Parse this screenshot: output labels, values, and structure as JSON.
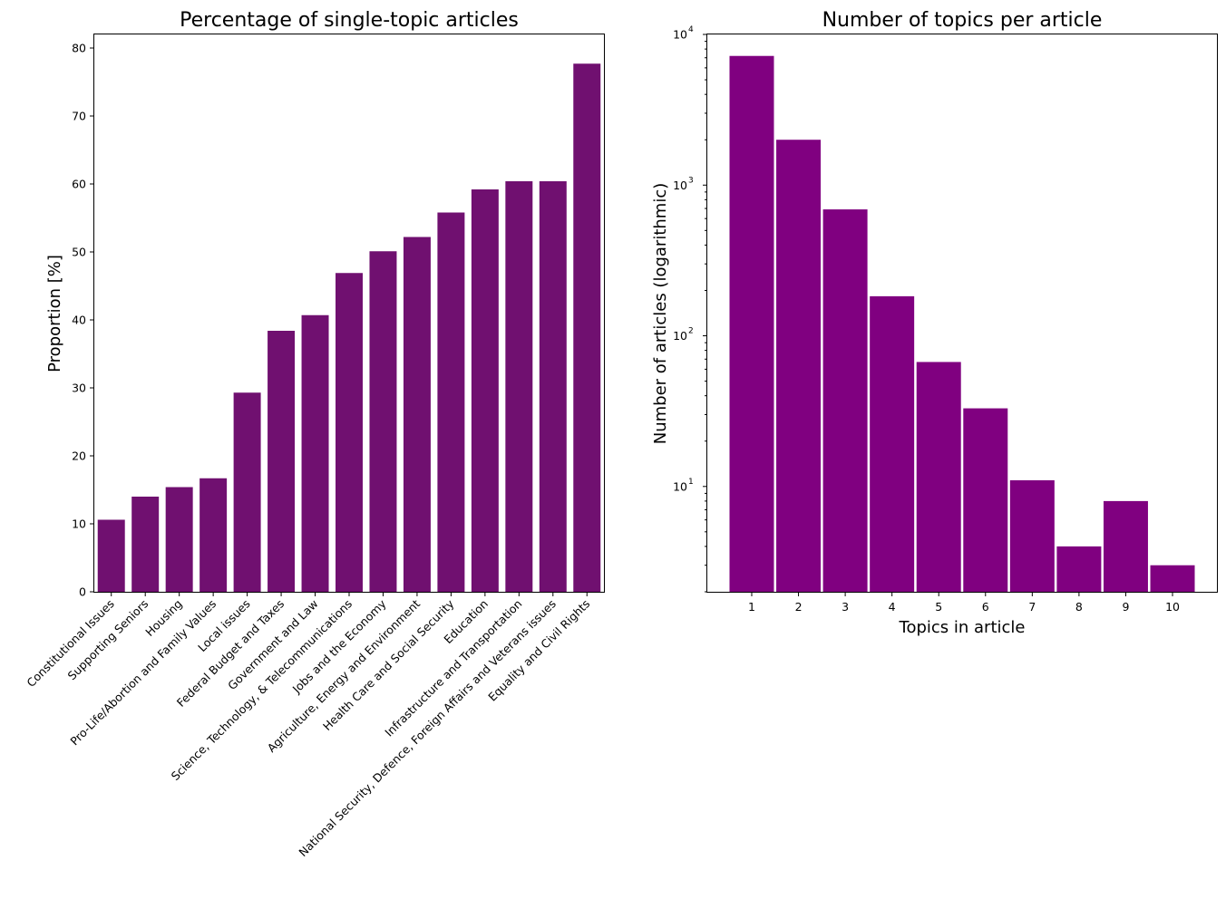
{
  "chart_data": [
    {
      "type": "bar",
      "title": "Percentage of single-topic articles",
      "xlabel": "",
      "ylabel": "Proportion [%]",
      "ylim": [
        0,
        82
      ],
      "yticks": [
        0,
        10,
        20,
        30,
        40,
        50,
        60,
        70,
        80
      ],
      "color": "#701070",
      "categories": [
        "Constitutional Issues",
        "Supporting Seniors",
        "Housing",
        "Pro-Life/Abortion and Family Values",
        "Local issues",
        "Federal Budget and Taxes",
        "Government and Law",
        "Science, Technology, & Telecommunications",
        "Jobs and the Economy",
        "Agriculture, Energy and Environment",
        "Health Care and Social Security",
        "Education",
        "Infrastructure and Transportation",
        "National Security, Defence, Foreign Affairs and Veterans issues",
        "Equality and Civil Rights"
      ],
      "values": [
        10.6,
        14.0,
        15.4,
        16.7,
        29.3,
        38.4,
        40.7,
        46.9,
        50.1,
        52.2,
        55.8,
        59.2,
        60.4,
        60.4,
        77.7
      ],
      "grid": false
    },
    {
      "type": "bar",
      "title": "Number of topics per article",
      "xlabel": "Topics in article",
      "ylabel": "Number of articles (logarithmic)",
      "yscale": "log",
      "ylim": [
        2,
        10000
      ],
      "yticks": [
        {
          "base": "10",
          "exp": "1",
          "value": 10
        },
        {
          "base": "10",
          "exp": "2",
          "value": 100
        },
        {
          "base": "10",
          "exp": "3",
          "value": 1000
        },
        {
          "base": "10",
          "exp": "4",
          "value": 10000
        }
      ],
      "color": "#800080",
      "categories": [
        "1",
        "2",
        "3",
        "4",
        "5",
        "6",
        "7",
        "8",
        "9",
        "10"
      ],
      "values": [
        7200,
        2000,
        690,
        183,
        67,
        33,
        11,
        4,
        8,
        3
      ],
      "grid": false
    }
  ]
}
